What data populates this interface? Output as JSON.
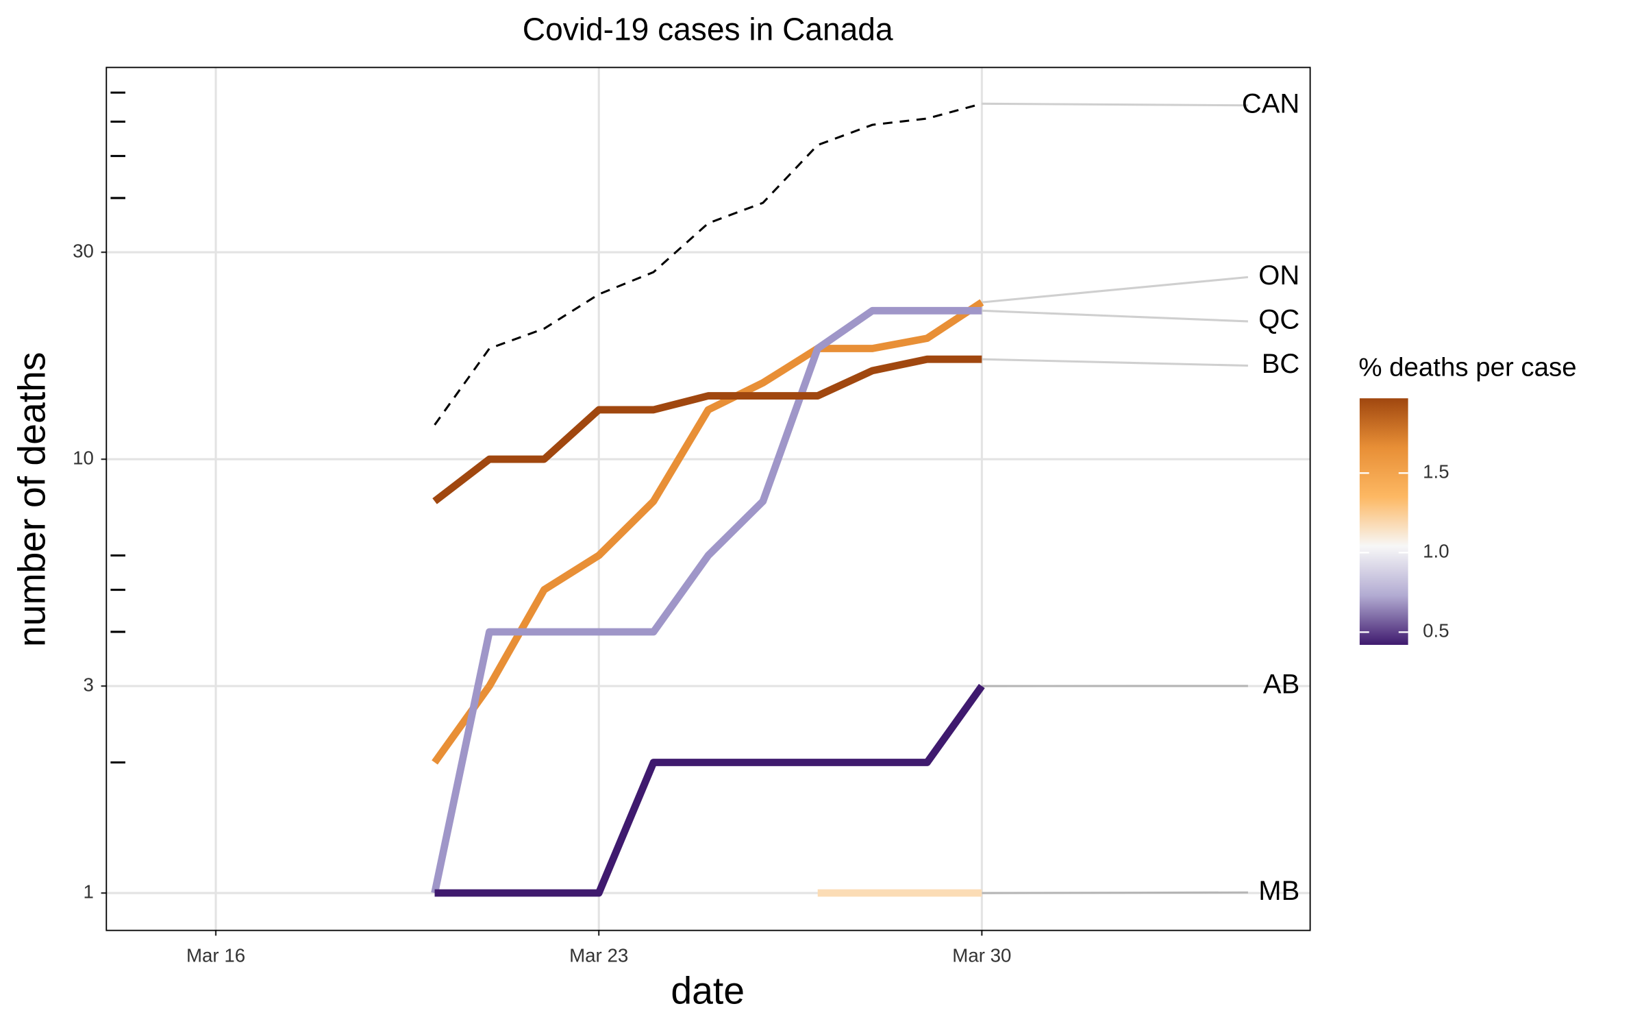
{
  "chart_data": {
    "type": "line",
    "title": "Covid-19 cases in Canada",
    "x_label": "date",
    "y_label": "number of deaths",
    "x": [
      20,
      21,
      22,
      23,
      24,
      25,
      26,
      27,
      28,
      29,
      30
    ],
    "series": [
      {
        "name": "CAN",
        "color": "#000000",
        "linestyle": "dashed",
        "values": [
          12,
          18,
          20,
          24,
          27,
          35,
          39,
          53,
          59,
          61,
          66
        ]
      },
      {
        "name": "ON",
        "color": "#e88f36",
        "linestyle": "solid",
        "values": [
          2,
          3,
          5,
          6,
          8,
          13,
          15,
          18,
          18,
          19,
          23
        ]
      },
      {
        "name": "QC",
        "color": "#9f96c8",
        "linestyle": "solid",
        "values": [
          1,
          4,
          4,
          4,
          4,
          6,
          8,
          18,
          22,
          22,
          22
        ]
      },
      {
        "name": "BC",
        "color": "#a0470f",
        "linestyle": "solid",
        "values": [
          8,
          10,
          10,
          13,
          13,
          14,
          14,
          14,
          16,
          17,
          17
        ]
      },
      {
        "name": "AB",
        "color": "#3f1a6e",
        "linestyle": "solid",
        "values": [
          1,
          1,
          1,
          1,
          2,
          2,
          2,
          2,
          2,
          2,
          3
        ]
      },
      {
        "name": "MB",
        "color": "#fbdcb5",
        "linestyle": "solid",
        "values": [
          null,
          null,
          null,
          null,
          null,
          null,
          null,
          1,
          1,
          1,
          1
        ]
      }
    ],
    "xlim": [
      14,
      36
    ],
    "xticks": [
      {
        "value": 16,
        "label": "Mar 16"
      },
      {
        "value": 23,
        "label": "Mar 23"
      },
      {
        "value": 30,
        "label": "Mar 30"
      }
    ],
    "ylim": [
      0.82,
      80
    ],
    "yticks": [
      1,
      3,
      10,
      30
    ],
    "yminorticks": [
      2,
      4,
      5,
      6,
      40,
      50,
      60,
      70
    ],
    "log_y": true,
    "grid": true,
    "colorbar": {
      "title": "% deaths per case",
      "lim": [
        0.42,
        1.97
      ],
      "ticks": [
        0.5,
        {
          "value": 1,
          "label": "1.0"
        },
        1.5
      ],
      "colors": [
        "#3f1a6e",
        "#b2abd2",
        "#f7f7f7",
        "#fdb863",
        "#e88f36",
        "#a0470f"
      ]
    }
  }
}
